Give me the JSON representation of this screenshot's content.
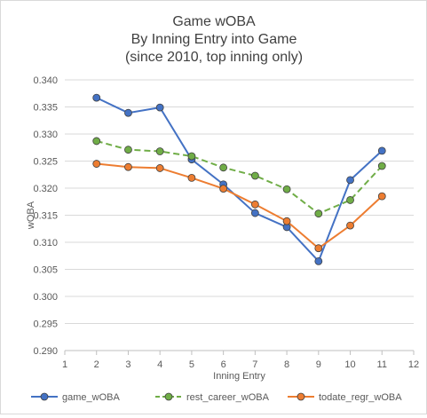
{
  "chart_data": {
    "type": "line",
    "title": [
      "Game wOBA",
      "By Inning Entry into Game",
      "(since 2010, top inning only)"
    ],
    "xlabel": "Inning Entry",
    "ylabel": "wOBA",
    "xlim": [
      1,
      12
    ],
    "ylim": [
      0.29,
      0.34
    ],
    "x_ticks": [
      "1",
      "2",
      "3",
      "4",
      "5",
      "6",
      "7",
      "8",
      "9",
      "10",
      "11",
      "12"
    ],
    "y_ticks": [
      "0.290",
      "0.295",
      "0.300",
      "0.305",
      "0.310",
      "0.315",
      "0.320",
      "0.325",
      "0.330",
      "0.335",
      "0.340"
    ],
    "grid": "horizontal",
    "legend_position": "bottom",
    "x": [
      2,
      3,
      4,
      5,
      6,
      7,
      8,
      9,
      10,
      11
    ],
    "series": [
      {
        "name": "game_wOBA",
        "color": "#4472c4",
        "dash": "solid",
        "values": [
          0.3367,
          0.3339,
          0.3349,
          0.3253,
          0.3207,
          0.3154,
          0.3128,
          0.3065,
          0.3215,
          0.3269
        ]
      },
      {
        "name": "rest_career_wOBA",
        "color": "#70ad47",
        "dash": "dashed",
        "values": [
          0.3287,
          0.3271,
          0.3268,
          0.3259,
          0.3238,
          0.3223,
          0.3198,
          0.3153,
          0.3178,
          0.3241
        ]
      },
      {
        "name": "todate_regr_wOBA",
        "color": "#ed7d31",
        "dash": "solid",
        "values": [
          0.3245,
          0.3239,
          0.3237,
          0.3219,
          0.3199,
          0.317,
          0.3139,
          0.3089,
          0.3131,
          0.3185
        ]
      }
    ]
  }
}
